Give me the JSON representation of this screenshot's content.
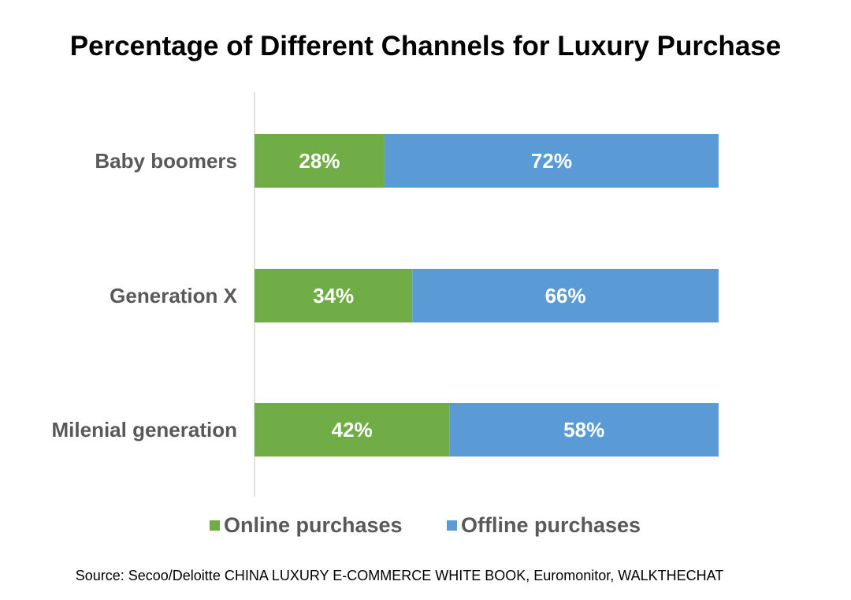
{
  "chart_data": {
    "type": "bar",
    "orientation": "horizontal",
    "stacked": true,
    "title": "Percentage of Different Channels for Luxury Purchase",
    "categories": [
      "Baby boomers",
      "Generation X",
      "Milenial generation"
    ],
    "series": [
      {
        "name": "Online purchases",
        "values": [
          28,
          34,
          42
        ],
        "labels": [
          "28%",
          "34%",
          "42%"
        ],
        "color": "#70ad47"
      },
      {
        "name": "Offline purchases",
        "values": [
          72,
          66,
          58
        ],
        "labels": [
          "72%",
          "66%",
          "58%"
        ],
        "color": "#5b9bd5"
      }
    ],
    "xlim": [
      0,
      100
    ],
    "grid": false,
    "legend_position": "bottom",
    "source": "Source: Secoo/Deloitte CHINA LUXURY E-COMMERCE WHITE BOOK, Euromonitor, WALKTHECHAT"
  },
  "colors": {
    "title_text": "#000000",
    "category_text": "#595959",
    "legend_text": "#595959",
    "data_label_text": "#ffffff",
    "axis_line": "#d9d9d9",
    "source_text": "#000000"
  }
}
